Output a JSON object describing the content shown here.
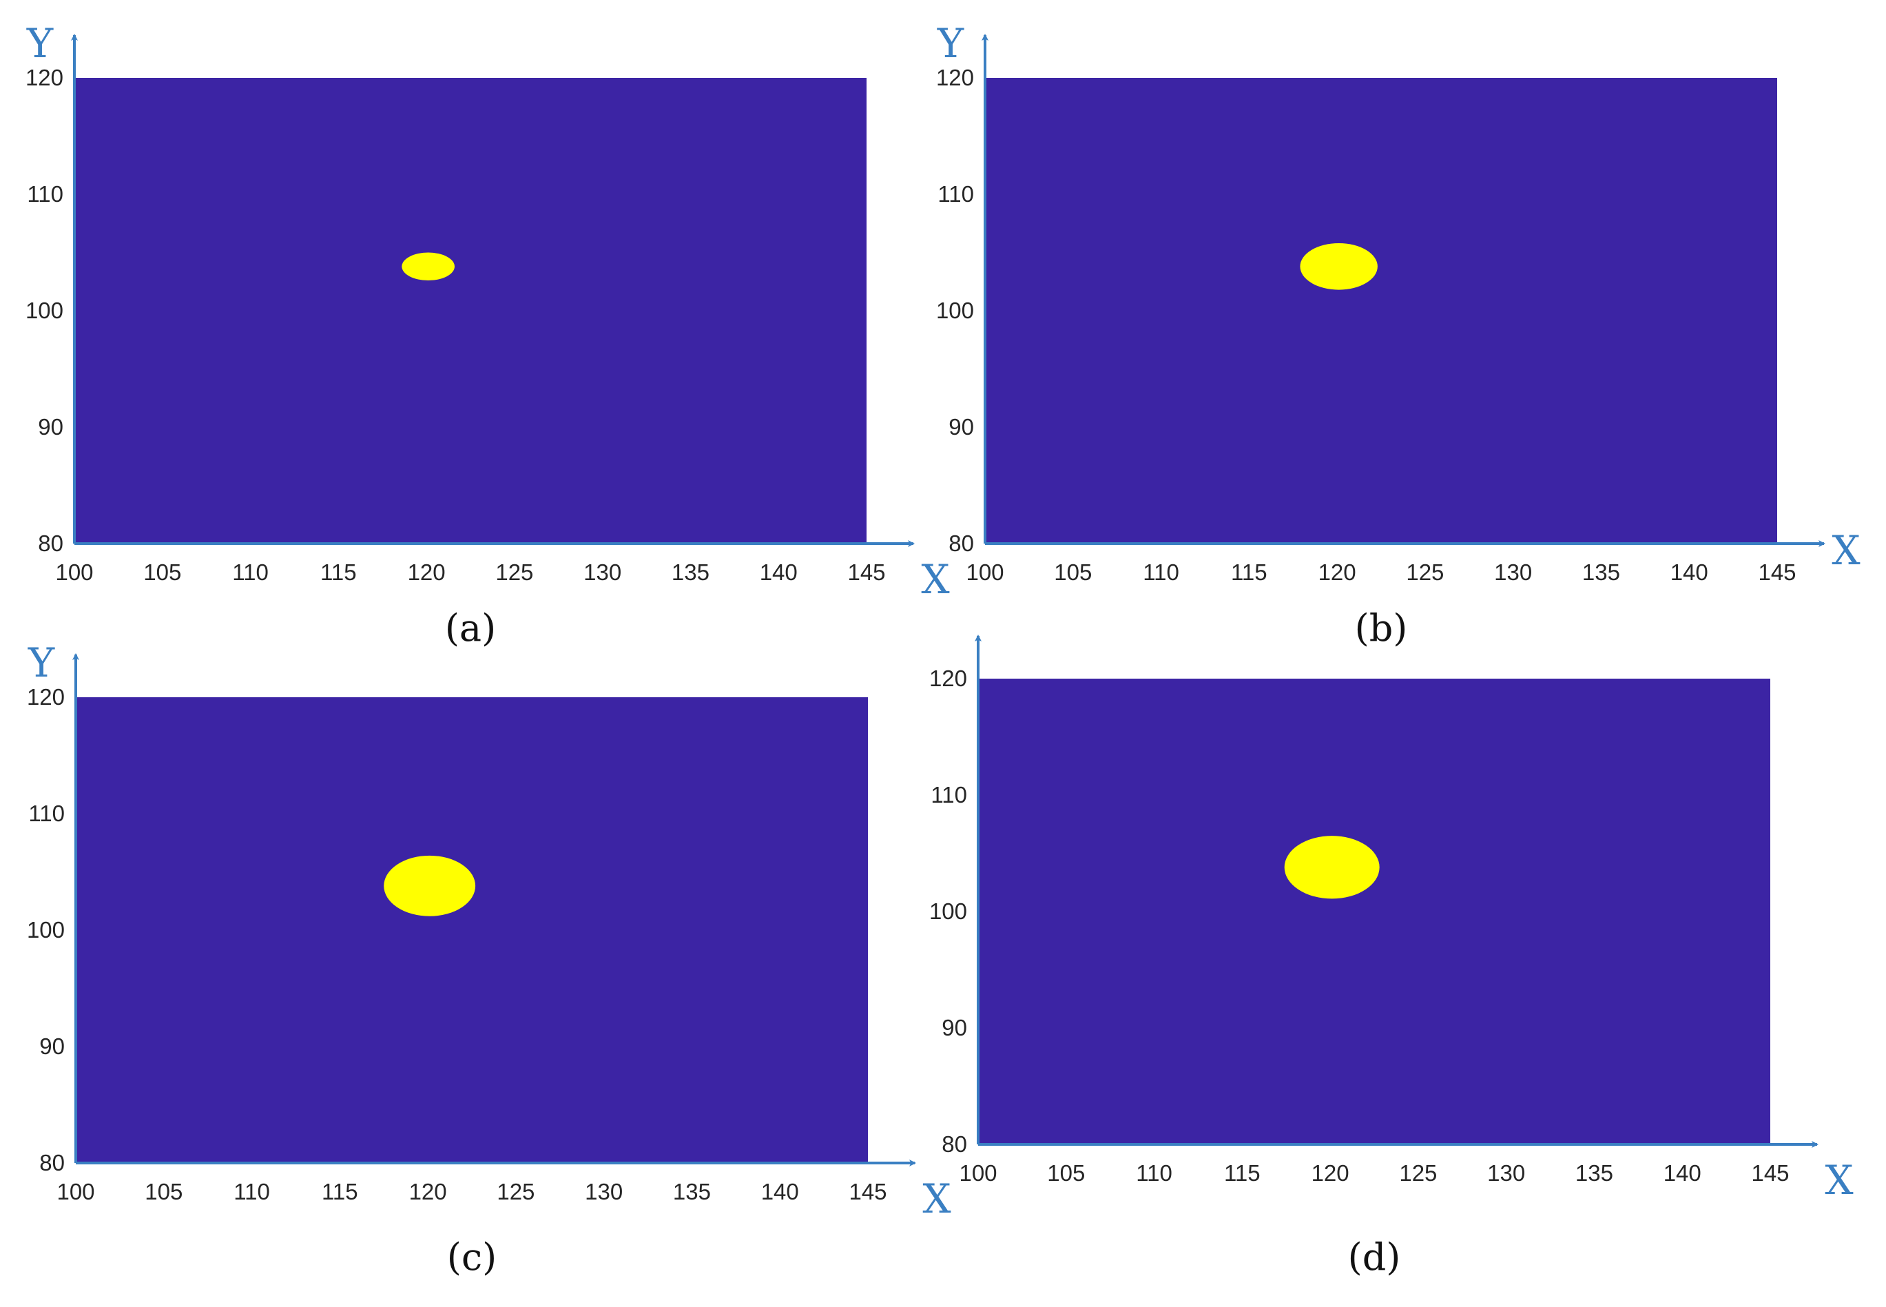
{
  "colors": {
    "field": "#3c24a4",
    "blob": "#ffff00",
    "axis_arrow": "#3a7fc2",
    "tick_text": "#262626",
    "caption_text": "#111111"
  },
  "chart_data": [
    {
      "type": "heatmap",
      "caption": "(a)",
      "xlabel": "X",
      "ylabel": "Y",
      "xlim": [
        100,
        145
      ],
      "ylim": [
        80,
        120
      ],
      "xticks": [
        100,
        105,
        110,
        115,
        120,
        125,
        130,
        135,
        140,
        145
      ],
      "yticks": [
        80,
        90,
        100,
        110,
        120
      ],
      "background_value": 0,
      "region": {
        "cx": 120.1,
        "cy": 103.8,
        "rx": 1.5,
        "ry": 1.2,
        "value": 1
      }
    },
    {
      "type": "heatmap",
      "caption": "(b)",
      "xlabel": "X",
      "ylabel": "Y",
      "xlim": [
        100,
        145
      ],
      "ylim": [
        80,
        120
      ],
      "xticks": [
        100,
        105,
        110,
        115,
        120,
        125,
        130,
        135,
        140,
        145
      ],
      "yticks": [
        80,
        90,
        100,
        110,
        120
      ],
      "background_value": 0,
      "region": {
        "cx": 120.1,
        "cy": 103.8,
        "rx": 2.2,
        "ry": 2.0,
        "value": 1
      }
    },
    {
      "type": "heatmap",
      "caption": "(c)",
      "xlabel": "X",
      "ylabel": "Y",
      "xlim": [
        100,
        145
      ],
      "ylim": [
        80,
        120
      ],
      "xticks": [
        100,
        105,
        110,
        115,
        120,
        125,
        130,
        135,
        140,
        145
      ],
      "yticks": [
        80,
        90,
        100,
        110,
        120
      ],
      "background_value": 0,
      "region": {
        "cx": 120.1,
        "cy": 103.8,
        "rx": 2.6,
        "ry": 2.6,
        "value": 1
      }
    },
    {
      "type": "heatmap",
      "caption": "(d)",
      "xlabel": "X",
      "ylabel": "",
      "xlim": [
        100,
        145
      ],
      "ylim": [
        80,
        120
      ],
      "xticks": [
        100,
        105,
        110,
        115,
        120,
        125,
        130,
        135,
        140,
        145
      ],
      "yticks": [
        80,
        90,
        100,
        110,
        120
      ],
      "background_value": 0,
      "region": {
        "cx": 120.1,
        "cy": 103.8,
        "rx": 2.7,
        "ry": 2.7,
        "value": 1
      }
    }
  ]
}
